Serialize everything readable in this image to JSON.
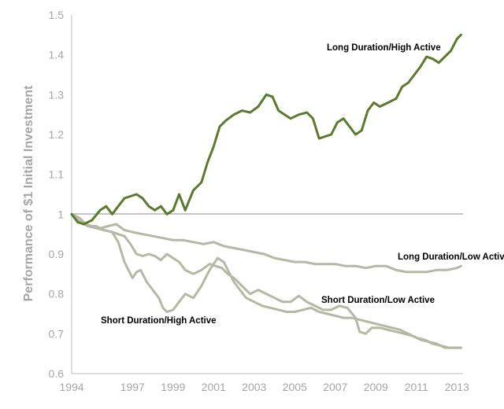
{
  "chart_data": {
    "type": "line",
    "title": "",
    "xlabel": "",
    "ylabel": "Performance of $1 Initial Investment",
    "xlim": [
      1994,
      2013.3
    ],
    "ylim": [
      0.6,
      1.5
    ],
    "x_ticks": [
      1994,
      1997,
      1999,
      2001,
      2003,
      2005,
      2007,
      2009,
      2011,
      2013
    ],
    "y_ticks": [
      0.6,
      0.7,
      0.8,
      0.9,
      1.0,
      1.1,
      1.2,
      1.3,
      1.4,
      1.5
    ],
    "y_tick_labels": [
      "0.6",
      "0.7",
      "0.8",
      "0.9",
      "1",
      "1.1",
      "1.2",
      "1.3",
      "1.4",
      "1.5"
    ],
    "baseline": 1.0,
    "grid": false,
    "legend": "none (series labelled directly on the plot)",
    "series": [
      {
        "name": "Long Duration/High Active",
        "color": "#5b7a2e",
        "x": [
          1994.0,
          1994.3,
          1994.6,
          1995.0,
          1995.4,
          1995.7,
          1996.0,
          1996.3,
          1996.6,
          1996.9,
          1997.2,
          1997.5,
          1997.8,
          1998.1,
          1998.4,
          1998.7,
          1999.0,
          1999.3,
          1999.6,
          2000.0,
          2000.2,
          2000.4,
          2000.7,
          2001.0,
          2001.3,
          2001.6,
          2002.0,
          2002.4,
          2002.8,
          2003.2,
          2003.6,
          2003.9,
          2004.2,
          2004.5,
          2004.8,
          2005.2,
          2005.6,
          2005.9,
          2006.2,
          2006.5,
          2006.8,
          2007.1,
          2007.4,
          2007.7,
          2008.0,
          2008.3,
          2008.6,
          2008.9,
          2009.2,
          2009.6,
          2010.0,
          2010.3,
          2010.6,
          2010.9,
          2011.2,
          2011.5,
          2011.8,
          2012.1,
          2012.4,
          2012.7,
          2013.0,
          2013.2
        ],
        "values": [
          1.0,
          0.98,
          0.975,
          0.985,
          1.01,
          1.02,
          1.0,
          1.02,
          1.04,
          1.045,
          1.05,
          1.04,
          1.02,
          1.01,
          1.02,
          1.0,
          1.01,
          1.05,
          1.01,
          1.06,
          1.07,
          1.08,
          1.13,
          1.17,
          1.22,
          1.235,
          1.25,
          1.26,
          1.255,
          1.27,
          1.3,
          1.295,
          1.26,
          1.25,
          1.24,
          1.25,
          1.255,
          1.24,
          1.19,
          1.195,
          1.2,
          1.23,
          1.24,
          1.22,
          1.2,
          1.21,
          1.26,
          1.28,
          1.27,
          1.28,
          1.29,
          1.32,
          1.33,
          1.35,
          1.37,
          1.395,
          1.39,
          1.38,
          1.395,
          1.41,
          1.44,
          1.45
        ]
      },
      {
        "name": "Long Duration/Low Active",
        "color": "#b5b8a3",
        "x": [
          1994.0,
          1994.3,
          1994.6,
          1995.0,
          1995.4,
          1995.8,
          1996.2,
          1996.6,
          1997.0,
          1997.5,
          1998.0,
          1998.5,
          1999.0,
          1999.5,
          2000.0,
          2000.5,
          2001.0,
          2001.5,
          2002.0,
          2002.5,
          2003.0,
          2003.5,
          2004.0,
          2004.5,
          2005.0,
          2005.5,
          2006.0,
          2006.5,
          2007.0,
          2007.5,
          2008.0,
          2008.5,
          2009.0,
          2009.5,
          2010.0,
          2010.5,
          2011.0,
          2011.5,
          2012.0,
          2012.5,
          2013.0,
          2013.2
        ],
        "values": [
          1.0,
          0.985,
          0.975,
          0.97,
          0.965,
          0.97,
          0.975,
          0.96,
          0.955,
          0.95,
          0.945,
          0.94,
          0.935,
          0.935,
          0.93,
          0.925,
          0.93,
          0.92,
          0.915,
          0.91,
          0.905,
          0.9,
          0.89,
          0.885,
          0.88,
          0.88,
          0.875,
          0.875,
          0.875,
          0.87,
          0.87,
          0.865,
          0.87,
          0.87,
          0.86,
          0.855,
          0.855,
          0.855,
          0.86,
          0.86,
          0.865,
          0.87
        ]
      },
      {
        "name": "Short Duration/Low Active",
        "color": "#b5b8a3",
        "x": [
          1994.0,
          1994.4,
          1994.8,
          1995.2,
          1995.6,
          1996.0,
          1996.3,
          1996.6,
          1996.9,
          1997.2,
          1997.5,
          1997.8,
          1998.1,
          1998.4,
          1998.7,
          1999.0,
          1999.3,
          1999.6,
          2000.0,
          2000.4,
          2000.8,
          2001.1,
          2001.4,
          2001.7,
          2002.0,
          2002.4,
          2002.8,
          2003.2,
          2003.6,
          2004.0,
          2004.4,
          2004.8,
          2005.2,
          2005.6,
          2006.0,
          2006.4,
          2006.8,
          2007.2,
          2007.6,
          2008.0,
          2008.2,
          2008.5,
          2008.8,
          2009.2,
          2009.6,
          2010.0,
          2010.4,
          2010.8,
          2011.2,
          2011.6,
          2012.0,
          2012.4,
          2012.8,
          2013.2
        ],
        "values": [
          1.0,
          0.98,
          0.97,
          0.965,
          0.96,
          0.955,
          0.95,
          0.945,
          0.925,
          0.9,
          0.895,
          0.9,
          0.895,
          0.885,
          0.9,
          0.89,
          0.88,
          0.86,
          0.85,
          0.86,
          0.875,
          0.87,
          0.865,
          0.85,
          0.84,
          0.82,
          0.8,
          0.81,
          0.8,
          0.79,
          0.78,
          0.78,
          0.795,
          0.78,
          0.77,
          0.76,
          0.76,
          0.77,
          0.765,
          0.74,
          0.705,
          0.7,
          0.715,
          0.715,
          0.71,
          0.705,
          0.7,
          0.695,
          0.685,
          0.68,
          0.675,
          0.665,
          0.665,
          0.665
        ]
      },
      {
        "name": "Short Duration/High Active",
        "color": "#b5b8a3",
        "x": [
          1994.0,
          1994.4,
          1994.8,
          1995.2,
          1995.6,
          1996.0,
          1996.3,
          1996.6,
          1996.8,
          1997.0,
          1997.2,
          1997.4,
          1997.7,
          1998.0,
          1998.3,
          1998.5,
          1998.7,
          1999.0,
          1999.3,
          1999.6,
          2000.0,
          2000.4,
          2000.8,
          2001.2,
          2001.5,
          2001.8,
          2002.0,
          2002.3,
          2002.6,
          2003.0,
          2003.4,
          2003.8,
          2004.2,
          2004.6,
          2005.0,
          2005.4,
          2005.8,
          2006.2,
          2006.6,
          2007.0,
          2007.4,
          2007.8,
          2008.2,
          2008.6,
          2009.0,
          2009.4,
          2009.8,
          2010.2,
          2010.6,
          2011.0,
          2011.4,
          2011.8,
          2012.2,
          2012.6,
          2013.0,
          2013.2
        ],
        "values": [
          1.0,
          0.99,
          0.97,
          0.97,
          0.96,
          0.955,
          0.93,
          0.88,
          0.86,
          0.84,
          0.855,
          0.86,
          0.83,
          0.81,
          0.79,
          0.765,
          0.755,
          0.76,
          0.78,
          0.8,
          0.79,
          0.82,
          0.86,
          0.89,
          0.88,
          0.85,
          0.83,
          0.81,
          0.79,
          0.78,
          0.77,
          0.765,
          0.76,
          0.755,
          0.755,
          0.76,
          0.765,
          0.755,
          0.75,
          0.745,
          0.74,
          0.74,
          0.735,
          0.73,
          0.725,
          0.72,
          0.715,
          0.71,
          0.7,
          0.69,
          0.685,
          0.675,
          0.67,
          0.665,
          0.665,
          0.665
        ]
      }
    ],
    "annotations": [
      {
        "text": "Long Duration/High Active",
        "series": "Long Duration/High Active"
      },
      {
        "text": "Long Duration/Low Active",
        "series": "Long Duration/Low Active"
      },
      {
        "text": "Short Duration/Low Active",
        "series": "Short Duration/Low Active"
      },
      {
        "text": "Short Duration/High Active",
        "series": "Short Duration/High Active"
      }
    ]
  }
}
